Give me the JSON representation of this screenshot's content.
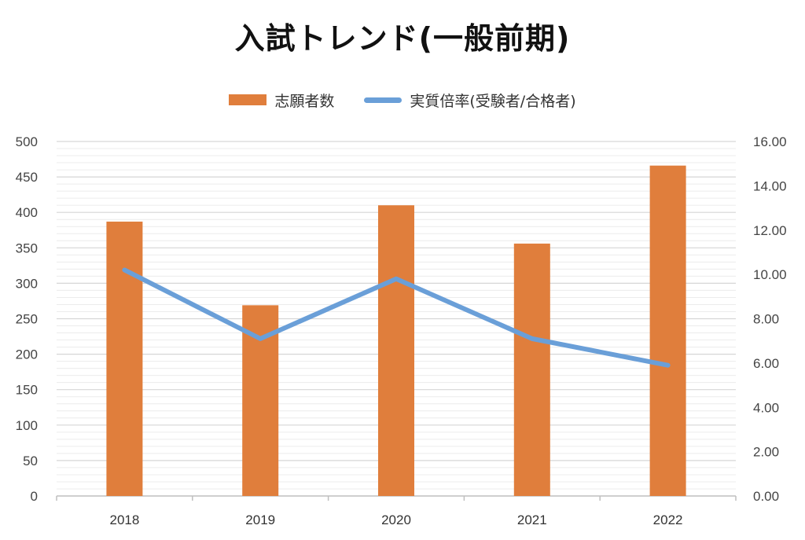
{
  "chart_data": {
    "type": "bar",
    "title": "入試トレンド(一般前期)",
    "categories": [
      "2018",
      "2019",
      "2020",
      "2021",
      "2022"
    ],
    "series": [
      {
        "name": "志願者数",
        "type": "bar",
        "axis": "left",
        "color": "#E07E3C",
        "values": [
          387,
          269,
          410,
          356,
          466
        ]
      },
      {
        "name": "実質倍率(受験者/合格者)",
        "type": "line",
        "axis": "right",
        "color": "#6A9FD8",
        "values": [
          10.2,
          7.1,
          9.8,
          7.1,
          5.9
        ]
      }
    ],
    "y_left": {
      "min": 0,
      "max": 500,
      "step": 50,
      "ticks": [
        "0",
        "50",
        "100",
        "150",
        "200",
        "250",
        "300",
        "350",
        "400",
        "450",
        "500"
      ]
    },
    "y_right": {
      "min": 0,
      "max": 16,
      "step": 2,
      "ticks": [
        "0.00",
        "2.00",
        "4.00",
        "6.00",
        "8.00",
        "10.00",
        "12.00",
        "14.00",
        "16.00"
      ]
    },
    "grid": true,
    "legend": "top"
  }
}
